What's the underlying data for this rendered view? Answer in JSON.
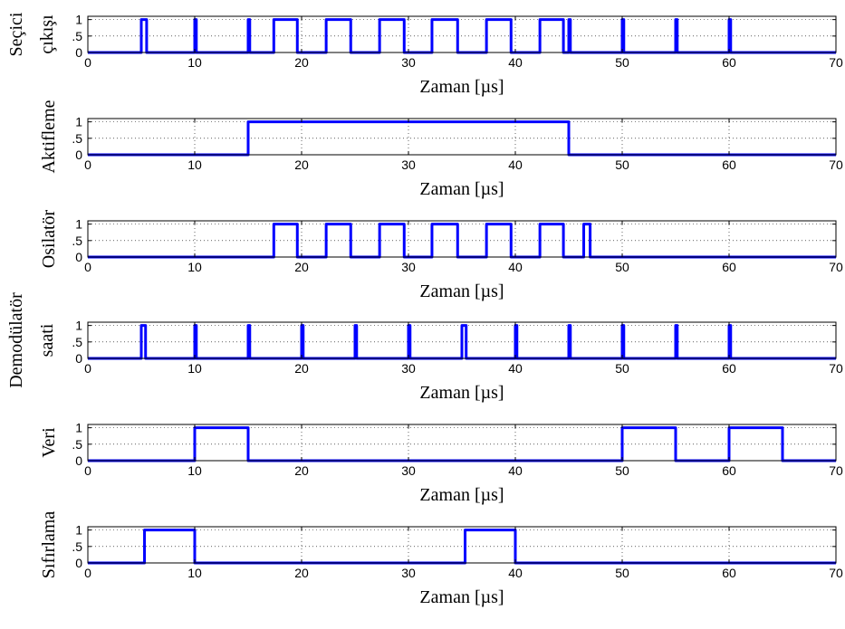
{
  "figure": {
    "xlabel": "Zaman [µs]",
    "trace_color": "#0000ff",
    "background": "#ffffff"
  },
  "chart_data": [
    {
      "type": "line",
      "ylabel_lines": [
        "Seçici",
        "çıkışı"
      ],
      "xlim": [
        0,
        70
      ],
      "ylim": [
        0,
        1.1
      ],
      "xticks": [
        0,
        10,
        20,
        30,
        40,
        50,
        60,
        70
      ],
      "yticks": [
        0,
        0.5,
        1
      ],
      "ytick_labels": [
        "0",
        ".5",
        "1"
      ],
      "grid": true,
      "pulses": [
        [
          5,
          5.5
        ],
        [
          10,
          10.15
        ],
        [
          15,
          15.15
        ],
        [
          17.4,
          19.6
        ],
        [
          22.3,
          24.6
        ],
        [
          27.3,
          29.6
        ],
        [
          32.2,
          34.6
        ],
        [
          37.3,
          39.6
        ],
        [
          42.3,
          44.5
        ],
        [
          45,
          45.15
        ],
        [
          50,
          50.15
        ],
        [
          55,
          55.15
        ],
        [
          60,
          60.15
        ]
      ]
    },
    {
      "type": "line",
      "ylabel_lines": [
        "Aktifleme"
      ],
      "xlim": [
        0,
        70
      ],
      "ylim": [
        0,
        1.1
      ],
      "xticks": [
        0,
        10,
        20,
        30,
        40,
        50,
        60,
        70
      ],
      "yticks": [
        0,
        0.5,
        1
      ],
      "ytick_labels": [
        "0",
        ".5",
        "1"
      ],
      "grid": true,
      "pulses": [
        [
          15,
          45
        ]
      ]
    },
    {
      "type": "line",
      "ylabel_lines": [
        "Osilatör"
      ],
      "xlim": [
        0,
        70
      ],
      "ylim": [
        0,
        1.1
      ],
      "xticks": [
        0,
        10,
        20,
        30,
        40,
        50,
        60,
        70
      ],
      "yticks": [
        0,
        0.5,
        1
      ],
      "ytick_labels": [
        "0",
        ".5",
        "1"
      ],
      "grid": true,
      "pulses": [
        [
          17.4,
          19.6
        ],
        [
          22.3,
          24.6
        ],
        [
          27.3,
          29.6
        ],
        [
          32.2,
          34.6
        ],
        [
          37.3,
          39.6
        ],
        [
          42.3,
          44.5
        ],
        [
          46.4,
          47
        ]
      ]
    },
    {
      "type": "line",
      "ylabel_lines": [
        "Demodülatör",
        "saati"
      ],
      "xlim": [
        0,
        70
      ],
      "ylim": [
        0,
        1.1
      ],
      "xticks": [
        0,
        10,
        20,
        30,
        40,
        50,
        60,
        70
      ],
      "yticks": [
        0,
        0.5,
        1
      ],
      "ytick_labels": [
        "0",
        ".5",
        "1"
      ],
      "grid": true,
      "pulses": [
        [
          5,
          5.4
        ],
        [
          10,
          10.15
        ],
        [
          15,
          15.15
        ],
        [
          20,
          20.15
        ],
        [
          25,
          25.15
        ],
        [
          30,
          30.15
        ],
        [
          35,
          35.4
        ],
        [
          40,
          40.15
        ],
        [
          45,
          45.15
        ],
        [
          50,
          50.15
        ],
        [
          55,
          55.15
        ],
        [
          60,
          60.15
        ]
      ]
    },
    {
      "type": "line",
      "ylabel_lines": [
        "Veri"
      ],
      "xlim": [
        0,
        70
      ],
      "ylim": [
        0,
        1.1
      ],
      "xticks": [
        0,
        10,
        20,
        30,
        40,
        50,
        60,
        70
      ],
      "yticks": [
        0,
        0.5,
        1
      ],
      "ytick_labels": [
        "0",
        ".5",
        "1"
      ],
      "grid": true,
      "pulses": [
        [
          10,
          15
        ],
        [
          50,
          55
        ],
        [
          60,
          65
        ]
      ]
    },
    {
      "type": "line",
      "ylabel_lines": [
        "Sıfırlama"
      ],
      "xlim": [
        0,
        70
      ],
      "ylim": [
        0,
        1.1
      ],
      "xticks": [
        0,
        10,
        20,
        30,
        40,
        50,
        60,
        70
      ],
      "yticks": [
        0,
        0.5,
        1
      ],
      "ytick_labels": [
        "0",
        ".5",
        "1"
      ],
      "grid": true,
      "pulses": [
        [
          5.3,
          10
        ],
        [
          35.3,
          40
        ]
      ]
    }
  ]
}
